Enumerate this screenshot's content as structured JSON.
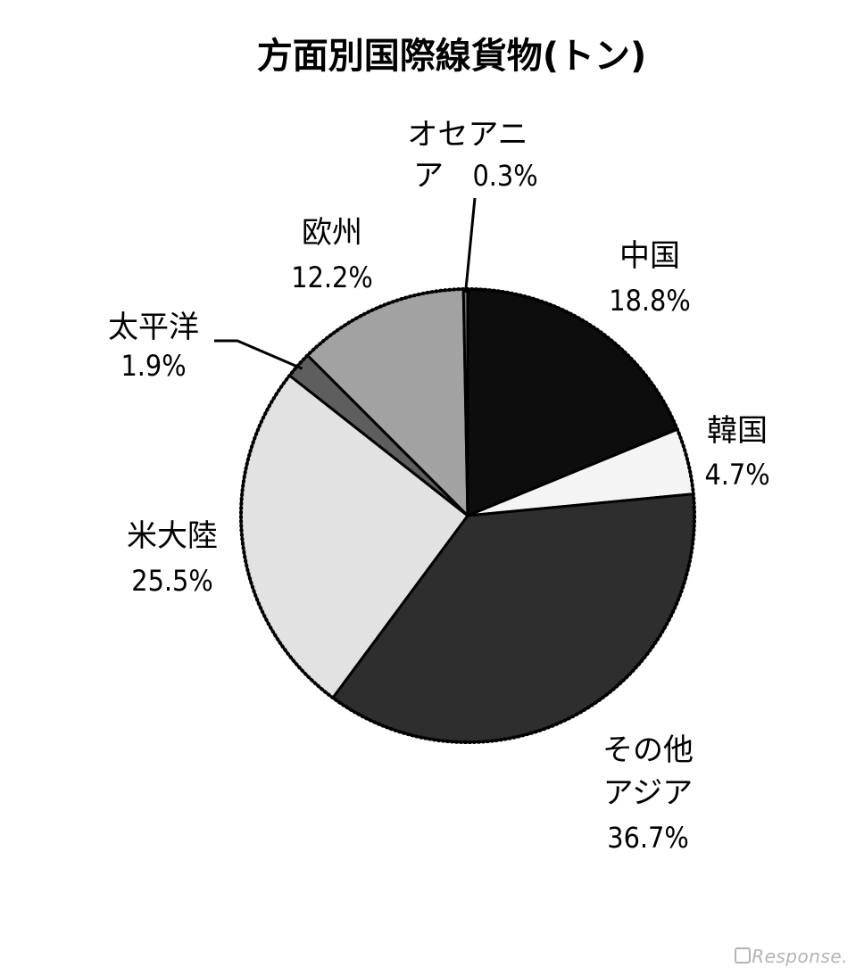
{
  "chart_data": {
    "type": "pie",
    "title": "方面別国際線貨物(トン)",
    "start_angle_deg": 0,
    "direction": "clockwise",
    "slices": [
      {
        "label": "中国",
        "value": 18.8,
        "value_label": "18.8%",
        "color": "#0d0d0d"
      },
      {
        "label": "韓国",
        "value": 4.7,
        "value_label": "4.7%",
        "color": "#f4f4f4"
      },
      {
        "label": "その他アジア",
        "value": 36.7,
        "value_label": "36.7%",
        "color": "#2e2e2e"
      },
      {
        "label": "米大陸",
        "value": 25.5,
        "value_label": "25.5%",
        "color": "#e2e2e2"
      },
      {
        "label": "太平洋",
        "value": 1.9,
        "value_label": "1.9%",
        "color": "#5e5e5e"
      },
      {
        "label": "欧州",
        "value": 12.2,
        "value_label": "12.2%",
        "color": "#a2a2a2"
      },
      {
        "label": "オセアニア",
        "value": 0.3,
        "value_label": "0.3%",
        "color": "#777777"
      }
    ]
  },
  "watermark": "Response."
}
